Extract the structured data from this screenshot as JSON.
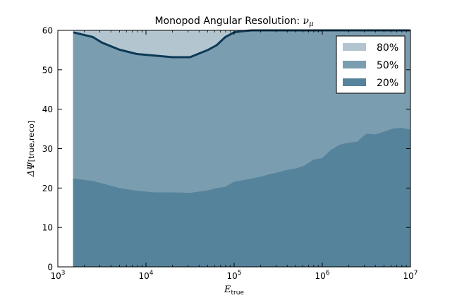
{
  "chart_data": {
    "type": "area",
    "title": "Monopod Angular Resolution: ",
    "title_symbol": "ν",
    "title_subscript": "μ",
    "xlabel": "E",
    "xlabel_subscript": "true",
    "ylabel": "ΔΨ",
    "ylabel_subscript": "[true,reco]",
    "x_scale": "log",
    "xlim": [
      1000,
      10000000
    ],
    "ylim": [
      0,
      60
    ],
    "x_ticks": [
      {
        "value": 1000,
        "base": "10",
        "exp": "3"
      },
      {
        "value": 10000,
        "base": "10",
        "exp": "4"
      },
      {
        "value": 100000,
        "base": "10",
        "exp": "5"
      },
      {
        "value": 1000000,
        "base": "10",
        "exp": "6"
      },
      {
        "value": 10000000,
        "base": "10",
        "exp": "7"
      }
    ],
    "y_ticks": [
      0,
      10,
      20,
      30,
      40,
      50,
      60
    ],
    "legend_position": "top-right",
    "x": [
      1500,
      2500,
      3160,
      5000,
      7900,
      12600,
      20000,
      31600,
      50100,
      63000,
      79400,
      100000,
      126000,
      158000,
      200000,
      251000,
      316000,
      398000,
      501000,
      631000,
      794000,
      1000000,
      1260000,
      1580000,
      2000000,
      2510000,
      3160000,
      3980000,
      5010000,
      6310000,
      7940000,
      10000000
    ],
    "series": [
      {
        "name": "80%",
        "color": "#b3c6d0",
        "values": [
          60,
          60,
          60,
          60,
          60,
          60,
          60,
          60,
          60,
          60,
          60,
          60,
          60,
          60,
          60,
          60,
          60,
          60,
          60,
          60,
          60,
          60,
          60,
          60,
          60,
          60,
          60,
          60,
          60,
          60,
          60,
          60
        ]
      },
      {
        "name": "50%",
        "color": "#7b9db0",
        "line_color": "#0d3a56",
        "values": [
          59.5,
          58.3,
          56.9,
          55.1,
          54.0,
          53.6,
          53.2,
          53.2,
          55.0,
          56.2,
          58.3,
          59.5,
          59.8,
          60,
          60,
          60,
          60,
          60,
          60,
          60,
          60,
          60,
          60,
          60,
          60,
          60,
          60,
          60,
          60,
          60,
          60,
          60
        ]
      },
      {
        "name": "20%",
        "color": "#55839b",
        "values": [
          22.3,
          21.7,
          21.1,
          19.9,
          19.2,
          18.8,
          18.8,
          18.7,
          19.3,
          19.9,
          20.2,
          21.5,
          21.9,
          22.3,
          22.8,
          23.4,
          23.9,
          24.5,
          24.9,
          25.6,
          27.1,
          27.5,
          29.6,
          30.9,
          31.4,
          31.7,
          33.7,
          33.5,
          34.2,
          35.0,
          35.2,
          34.7
        ]
      }
    ]
  }
}
